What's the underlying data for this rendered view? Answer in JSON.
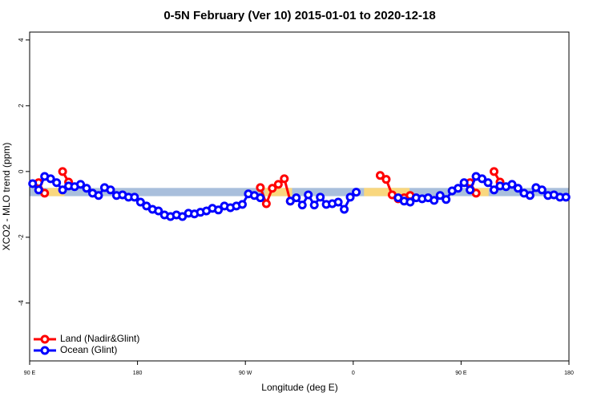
{
  "chart_data": {
    "type": "line",
    "title": "0-5N February (Ver 10)   2015-01-01 to 2020-12-18",
    "x_label": "Longitude (deg E)",
    "y_label": "XCO2 - MLO trend (ppm)",
    "xlim": [
      90,
      540
    ],
    "ylim": [
      -5.76,
      4.24
    ],
    "xticks": [
      {
        "value": 90,
        "label": "90 E"
      },
      180,
      {
        "value": 270,
        "label": "90 W"
      },
      {
        "value": 360,
        "label": "0"
      },
      {
        "value": 450,
        "label": "90 E"
      },
      {
        "value": 540,
        "label": "180"
      }
    ],
    "yticks": [
      -4,
      -2,
      0,
      2,
      4
    ],
    "band": {
      "range": [
        -0.75,
        -0.5
      ],
      "color": "#a9bfdc",
      "land_color": "#f9d77e",
      "land_spans": [
        [
          105,
          119
        ],
        [
          286,
          309
        ],
        [
          369,
          407
        ],
        [
          460,
          473
        ]
      ]
    },
    "legend": "bottom-left",
    "x": [
      92.5,
      97.5,
      102.5,
      107.5,
      112.5,
      117.5,
      122.5,
      127.5,
      132.5,
      137.5,
      142.5,
      147.5,
      152.5,
      157.5,
      162.5,
      167.5,
      172.5,
      177.5,
      182.5,
      187.5,
      192.5,
      197.5,
      202.5,
      207.5,
      212.5,
      217.5,
      222.5,
      227.5,
      232.5,
      237.5,
      242.5,
      247.5,
      252.5,
      257.5,
      262.5,
      267.5,
      272.5,
      277.5,
      282.5,
      287.5,
      292.5,
      297.5,
      302.5,
      307.5,
      312.5,
      317.5,
      322.5,
      327.5,
      332.5,
      337.5,
      342.5,
      347.5,
      352.5,
      357.5,
      362.5,
      367.5,
      372.5,
      377.5,
      382.5,
      387.5,
      392.5,
      397.5,
      402.5,
      407.5,
      412.5,
      417.5,
      422.5,
      427.5,
      432.5,
      437.5,
      442.5,
      447.5,
      452.5,
      457.5,
      462.5,
      467.5,
      472.5,
      477.5,
      482.5,
      487.5,
      492.5,
      497.5,
      502.5,
      507.5,
      512.5,
      517.5,
      522.5,
      527.5,
      532.5,
      537.5
    ],
    "series": [
      {
        "name": "Land (Nadir&Glint)",
        "color": "#ff0000",
        "values": [
          null,
          -0.34,
          -0.66,
          null,
          null,
          0,
          -0.32,
          null,
          null,
          null,
          null,
          null,
          null,
          null,
          null,
          null,
          null,
          null,
          null,
          null,
          null,
          null,
          null,
          null,
          null,
          null,
          null,
          null,
          null,
          null,
          null,
          null,
          null,
          null,
          null,
          null,
          null,
          null,
          -0.49,
          -0.98,
          -0.51,
          -0.39,
          -0.22,
          -0.9,
          null,
          null,
          null,
          null,
          null,
          null,
          null,
          null,
          null,
          null,
          null,
          null,
          null,
          null,
          -0.12,
          -0.24,
          -0.71,
          -0.83,
          -0.8,
          -0.73,
          null,
          null,
          null,
          null,
          null,
          null,
          null,
          null,
          null,
          -0.34,
          -0.66,
          null,
          null,
          0,
          -0.32,
          null,
          null,
          null,
          null,
          null,
          null,
          null,
          null,
          null,
          null,
          null
        ]
      },
      {
        "name": "Ocean (Glint)",
        "color": "#0000ff",
        "values": [
          -0.37,
          -0.56,
          -0.15,
          -0.22,
          -0.34,
          -0.56,
          -0.44,
          -0.46,
          -0.39,
          -0.51,
          -0.66,
          -0.73,
          -0.49,
          -0.56,
          -0.73,
          -0.71,
          -0.78,
          -0.78,
          -0.93,
          -1.05,
          -1.15,
          -1.2,
          -1.32,
          -1.37,
          -1.32,
          -1.37,
          -1.27,
          -1.29,
          -1.24,
          -1.2,
          -1.12,
          -1.17,
          -1.05,
          -1.1,
          -1.05,
          -1.0,
          -0.68,
          -0.73,
          -0.8,
          null,
          null,
          null,
          null,
          -0.9,
          -0.8,
          -1.02,
          -0.71,
          -1.02,
          -0.78,
          -1.0,
          -0.98,
          -0.93,
          -1.15,
          -0.78,
          -0.63,
          null,
          null,
          null,
          null,
          null,
          null,
          -0.8,
          -0.9,
          -0.93,
          -0.8,
          -0.83,
          -0.8,
          -0.88,
          -0.73,
          -0.85,
          -0.59,
          -0.51,
          -0.34,
          -0.56,
          -0.15,
          -0.22,
          -0.34,
          -0.56,
          -0.44,
          -0.46,
          -0.39,
          -0.51,
          -0.66,
          -0.73,
          -0.49,
          -0.56,
          -0.73,
          -0.71,
          -0.78,
          -0.78
        ]
      }
    ]
  }
}
